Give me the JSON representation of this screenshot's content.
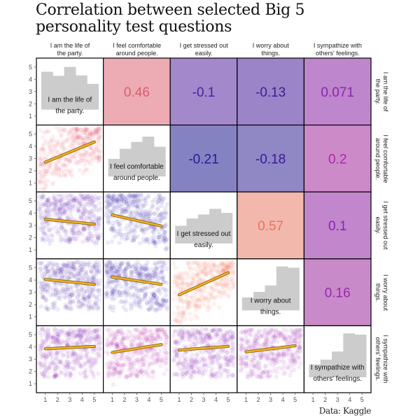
{
  "title_lines": [
    "Correlation between selected Big 5",
    "personality test questions"
  ],
  "source": "Data: Kaggle",
  "chart_data": {
    "type": "pairplot",
    "title": "Correlation between selected Big 5 personality test questions",
    "variables": [
      {
        "label": "I am the life of the party.",
        "header_lines": [
          "I am the life of",
          "the party."
        ]
      },
      {
        "label": "I feel comfortable around people.",
        "header_lines": [
          "I feel comfortable",
          "around people."
        ]
      },
      {
        "label": "I get stressed out easily.",
        "header_lines": [
          "I get stressed out",
          "easily."
        ]
      },
      {
        "label": "I worry about things.",
        "header_lines": [
          "I worry about",
          "things."
        ]
      },
      {
        "label": "I sympathize with others' feelings.",
        "header_lines": [
          "I sympathize with",
          "others' feelings."
        ]
      }
    ],
    "axis_ticks": [
      1,
      2,
      3,
      4,
      5
    ],
    "axis_range": [
      0.5,
      5.5
    ],
    "upper_triangle": "correlation",
    "lower_triangle": "scatter-with-regression",
    "diagonal": "histogram",
    "correlations": [
      [
        1,
        0.46,
        -0.1,
        -0.13,
        0.071
      ],
      [
        0.46,
        1,
        -0.21,
        -0.18,
        0.2
      ],
      [
        -0.1,
        -0.21,
        1,
        0.57,
        0.1
      ],
      [
        -0.13,
        -0.18,
        0.57,
        1,
        0.16
      ],
      [
        0.071,
        0.2,
        0.1,
        0.16,
        1
      ]
    ],
    "correlation_labels": [
      [
        "",
        "0.46",
        "-0.1",
        "-0.13",
        "0.071"
      ],
      [
        "",
        "",
        "-0.21",
        "-0.18",
        "0.2"
      ],
      [
        "",
        "",
        "",
        "0.57",
        "0.1"
      ],
      [
        "",
        "",
        "",
        "",
        "0.16"
      ],
      [
        "",
        "",
        "",
        "",
        ""
      ]
    ],
    "histograms_relative": [
      [
        0.8,
        0.7,
        0.92,
        0.71,
        0.5
      ],
      [
        0.3,
        0.55,
        0.72,
        0.85,
        0.6
      ],
      [
        0.3,
        0.48,
        0.58,
        0.72,
        0.62
      ],
      [
        0.18,
        0.32,
        0.48,
        0.95,
        0.92
      ],
      [
        0.18,
        0.3,
        0.5,
        0.95,
        0.92
      ]
    ],
    "regression_lines": {
      "1-0": {
        "y_at_1": 2.7,
        "y_at_5": 4.35
      },
      "2-0": {
        "y_at_1": 3.5,
        "y_at_5": 3.1
      },
      "2-1": {
        "y_at_1": 3.85,
        "y_at_5": 2.95
      },
      "3-0": {
        "y_at_1": 4.05,
        "y_at_5": 3.65
      },
      "3-1": {
        "y_at_1": 4.25,
        "y_at_5": 3.65
      },
      "3-2": {
        "y_at_1": 2.8,
        "y_at_5": 4.6
      },
      "4-0": {
        "y_at_1": 3.85,
        "y_at_5": 4.05
      },
      "4-1": {
        "y_at_1": 3.55,
        "y_at_5": 4.2
      },
      "4-2": {
        "y_at_1": 3.75,
        "y_at_5": 4.05
      },
      "4-3": {
        "y_at_1": 3.6,
        "y_at_5": 4.1
      }
    },
    "colors": {
      "histogram": "#cccccc",
      "regression_line": "#f2b21f",
      "regression_outline": "#7a5a10",
      "cell_border": "#000000",
      "corr_fill": {
        "0-1": "#edabb4",
        "0-2": "#a388cb",
        "0-3": "#9b85c8",
        "0-4": "#be86cc",
        "1-2": "#8582c2",
        "1-3": "#9087c5",
        "1-4": "#cc8ac8",
        "2-3": "#f2b8ac",
        "2-4": "#c286cc",
        "3-4": "#c88ac9"
      },
      "corr_text": {
        "0-1": "#dc5c6e",
        "0-2": "#4a1fa0",
        "0-3": "#3e1c98",
        "0-4": "#8a24b0",
        "1-2": "#261a98",
        "1-3": "#361a98",
        "1-4": "#a92aa8",
        "2-3": "#ec7260",
        "2-4": "#8a24b0",
        "3-4": "#9a28ae"
      },
      "scatter": {
        "1-0": "#e8566a",
        "2-0": "#5c12b4",
        "2-1": "#2c14a4",
        "3-0": "#4012aa",
        "3-1": "#3010a4",
        "3-2": "#f57058",
        "4-0": "#8a14b4",
        "4-1": "#b624a8",
        "4-2": "#8818b4",
        "4-3": "#9a1cb0"
      }
    }
  }
}
